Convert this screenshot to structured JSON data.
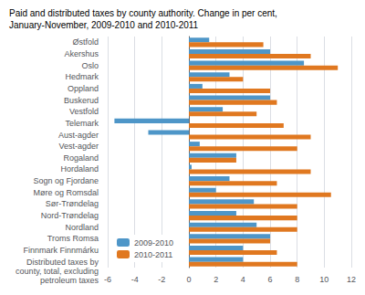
{
  "chart_data": {
    "type": "bar",
    "orientation": "horizontal",
    "title": "Paid and distributed taxes by county authority. Change in per cent,",
    "subtitle": "January-November, 2009-2010 and 2010-2011",
    "categories": [
      "Østfold",
      "Akershus",
      "Oslo",
      "Hedmark",
      "Oppland",
      "Buskerud",
      "Vestfold",
      "Telemark",
      "Aust-agder",
      "Vest-agder",
      "Rogaland",
      "Hordaland",
      "Sogn og Fjordane",
      "Møre og Romsdal",
      "Sør-Trøndelag",
      "Nord-Trøndelag",
      "Nordland",
      "Troms Romsa",
      "Finnmark Finnmárku",
      "Distributed taxes by\ncounty, total, excluding\npetroleum taxes"
    ],
    "series": [
      {
        "name": "2009-2010",
        "color": "#4e96c8",
        "values": [
          1.5,
          6.0,
          8.5,
          3.0,
          1.0,
          6.0,
          2.5,
          -5.5,
          -3.0,
          0.8,
          3.5,
          0.2,
          3.0,
          2.0,
          4.8,
          3.5,
          5.0,
          6.0,
          4.0,
          4.0
        ]
      },
      {
        "name": "2010-2011",
        "color": "#e07820",
        "values": [
          5.5,
          9.0,
          11.0,
          4.0,
          6.0,
          6.5,
          5.0,
          7.0,
          9.0,
          8.0,
          3.5,
          9.0,
          6.5,
          10.5,
          8.0,
          8.0,
          8.0,
          6.0,
          6.5,
          8.0
        ]
      }
    ],
    "xlim": [
      -6,
      12
    ],
    "xticks": [
      -6,
      -4,
      -2,
      0,
      2,
      4,
      6,
      8,
      10,
      12
    ],
    "grid": true,
    "legend": "lower left"
  }
}
